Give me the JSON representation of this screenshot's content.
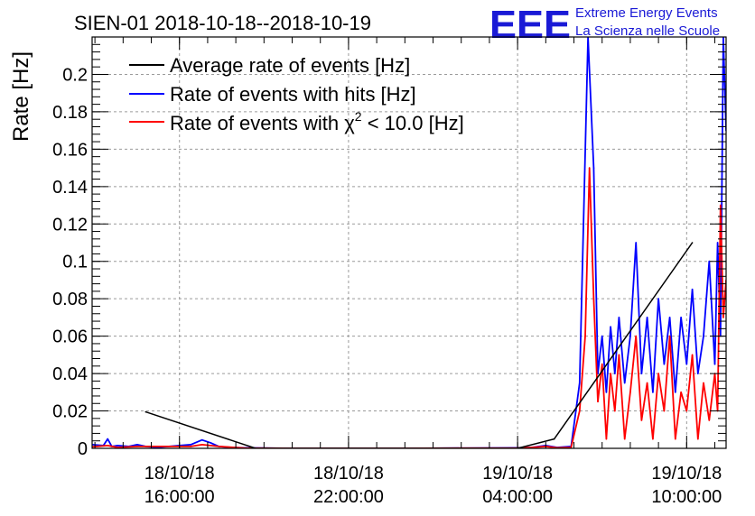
{
  "chart_data": {
    "type": "line",
    "title": "SIEN-01 2018-10-18--2018-10-19",
    "xlabel": "",
    "ylabel": "Rate [Hz]",
    "x_unit": "hours since 18/10/18 12:00",
    "xlim": [
      12.9,
      35.4
    ],
    "ylim": [
      0,
      0.22
    ],
    "grid": true,
    "legend_position": "top-left",
    "y_ticks": [
      0,
      0.02,
      0.04,
      0.06,
      0.08,
      0.1,
      0.12,
      0.14,
      0.16,
      0.18,
      0.2
    ],
    "y_tick_labels": [
      "0",
      "0.02",
      "0.04",
      "0.06",
      "0.08",
      "0.1",
      "0.12",
      "0.14",
      "0.16",
      "0.18",
      "0.2"
    ],
    "x_ticks": [
      {
        "value": 16,
        "date": "18/10/18",
        "time": "16:00:00"
      },
      {
        "value": 22,
        "date": "18/10/18",
        "time": "22:00:00"
      },
      {
        "value": 28,
        "date": "19/10/18",
        "time": "04:00:00"
      },
      {
        "value": 34,
        "date": "19/10/18",
        "time": "10:00:00"
      }
    ],
    "series": [
      {
        "name": "Average rate of events [Hz]",
        "color": "#000000",
        "x": [
          14.8,
          18.7,
          28.0,
          29.3,
          34.2
        ],
        "y": [
          0.0195,
          0.0,
          0.0,
          0.005,
          0.11
        ]
      },
      {
        "name": "Rate of events with hits [Hz]",
        "color": "#0000ff",
        "x": [
          12.9,
          13.3,
          13.45,
          13.6,
          13.8,
          14.2,
          14.5,
          14.8,
          15.2,
          16.0,
          16.4,
          16.8,
          17.1,
          17.4,
          17.8,
          18.3,
          20.0,
          24.0,
          28.0,
          28.5,
          29.0,
          29.4,
          29.9,
          30.2,
          30.5,
          30.7,
          30.85,
          31.0,
          31.15,
          31.3,
          31.45,
          31.6,
          31.8,
          32.0,
          32.2,
          32.4,
          32.6,
          32.8,
          33.0,
          33.2,
          33.4,
          33.6,
          33.8,
          34.0,
          34.2,
          34.4,
          34.6,
          34.8,
          35.0,
          35.1,
          35.2,
          35.3,
          35.4
        ],
        "y": [
          0.002,
          0.0015,
          0.005,
          0.001,
          0.0015,
          0.001,
          0.002,
          0.001,
          0.0005,
          0.0015,
          0.002,
          0.0045,
          0.003,
          0.001,
          0.0005,
          0.0003,
          0.0,
          0.0,
          0.0003,
          0.0005,
          0.0015,
          0.0005,
          0.001,
          0.035,
          0.22,
          0.15,
          0.04,
          0.06,
          0.03,
          0.065,
          0.04,
          0.07,
          0.035,
          0.06,
          0.11,
          0.04,
          0.07,
          0.03,
          0.08,
          0.045,
          0.07,
          0.03,
          0.07,
          0.045,
          0.085,
          0.04,
          0.06,
          0.1,
          0.045,
          0.11,
          0.06,
          0.22,
          0.17
        ]
      },
      {
        "name": "Rate of events with χ² < 10.0 [Hz]",
        "color": "#ff0000",
        "x": [
          12.9,
          13.45,
          13.8,
          14.5,
          16.4,
          16.8,
          17.4,
          18.3,
          20.0,
          24.0,
          28.0,
          28.5,
          29.0,
          29.4,
          29.9,
          30.2,
          30.4,
          30.55,
          30.7,
          30.85,
          31.0,
          31.15,
          31.3,
          31.45,
          31.6,
          31.8,
          32.0,
          32.2,
          32.4,
          32.6,
          32.8,
          33.0,
          33.2,
          33.4,
          33.6,
          33.8,
          34.0,
          34.2,
          34.4,
          34.6,
          34.8,
          35.0,
          35.1,
          35.2,
          35.3,
          35.4
        ],
        "y": [
          0.0008,
          0.0015,
          0.0005,
          0.001,
          0.001,
          0.002,
          0.001,
          0.0002,
          0.0,
          0.0,
          0.0002,
          0.0005,
          0.001,
          0.0003,
          0.0005,
          0.02,
          0.06,
          0.15,
          0.08,
          0.025,
          0.045,
          0.005,
          0.04,
          0.02,
          0.05,
          0.005,
          0.03,
          0.06,
          0.015,
          0.035,
          0.005,
          0.04,
          0.02,
          0.06,
          0.005,
          0.03,
          0.02,
          0.05,
          0.005,
          0.035,
          0.015,
          0.04,
          0.02,
          0.13,
          0.07,
          0.09
        ]
      }
    ],
    "legend": [
      {
        "label": "Average rate of events [Hz]",
        "color": "#000000"
      },
      {
        "label": "Rate of events with hits [Hz]",
        "color": "#0000ff"
      },
      {
        "label_prefix": "Rate of events with ",
        "label_symbol": "χ",
        "label_sup": "2",
        "label_suffix": " < 10.0 [Hz]",
        "color": "#ff0000"
      }
    ]
  },
  "logo": {
    "mark": "EEE",
    "line1": "Extreme Energy Events",
    "line2": "La Scienza nelle Scuole",
    "color": "#1a1ad6"
  }
}
